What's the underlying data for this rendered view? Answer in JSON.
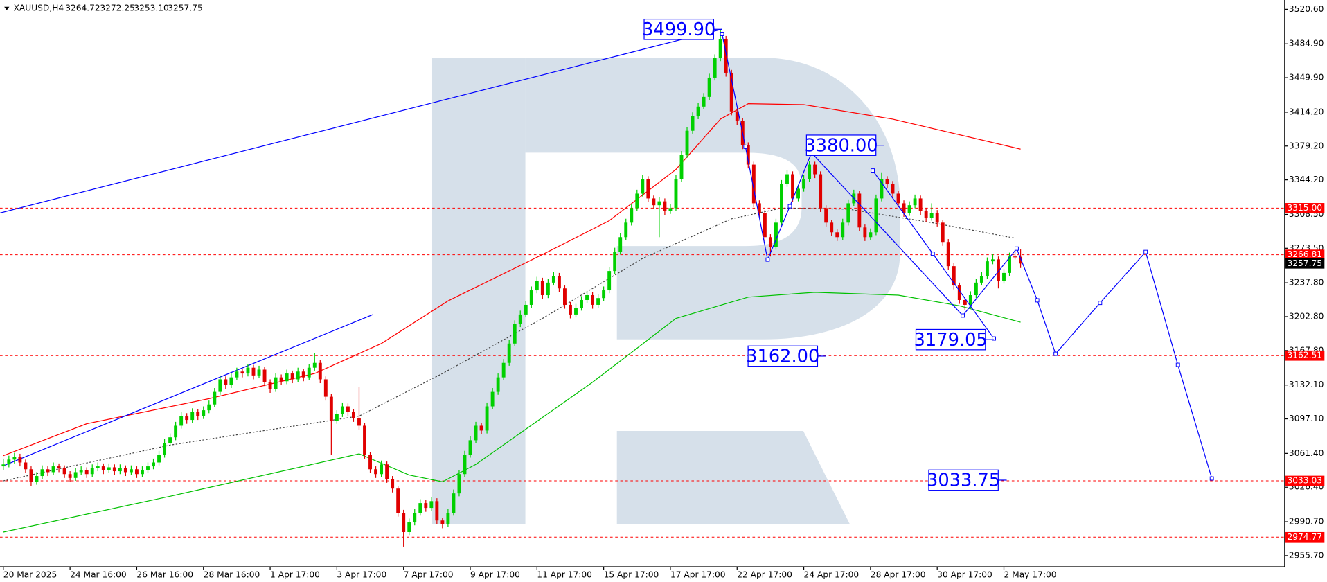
{
  "chart_data": {
    "type": "candlestick",
    "symbol": "XAUUSD,H4",
    "header_ohlc": [
      "3264.72",
      "3272.25",
      "3253.10",
      "3257.75"
    ],
    "up_color": "#00d000",
    "down_color": "#e00000",
    "xlim": [
      -0.6,
      230.5
    ],
    "xticks": [
      {
        "value": 0,
        "label": "20 Mar 2025"
      },
      {
        "value": 12,
        "label": "24 Mar 16:00"
      },
      {
        "value": 24,
        "label": "26 Mar 16:00"
      },
      {
        "value": 36,
        "label": "28 Mar 16:00"
      },
      {
        "value": 48,
        "label": "1 Apr 17:00"
      },
      {
        "value": 60,
        "label": "3 Apr 17:00"
      },
      {
        "value": 72,
        "label": "7 Apr 17:00"
      },
      {
        "value": 84,
        "label": "9 Apr 17:00"
      },
      {
        "value": 96,
        "label": "11 Apr 17:00"
      },
      {
        "value": 108,
        "label": "15 Apr 17:00"
      },
      {
        "value": 120,
        "label": "17 Apr 17:00"
      },
      {
        "value": 132,
        "label": "22 Apr 17:00"
      },
      {
        "value": 144,
        "label": "24 Apr 17:00"
      },
      {
        "value": 156,
        "label": "28 Apr 17:00"
      },
      {
        "value": 168,
        "label": "30 Apr 17:00"
      },
      {
        "value": 180,
        "label": "2 May 17:00"
      }
    ],
    "ylim": [
      2944.2,
      3530.2
    ],
    "yticks": [
      {
        "value": 3520.6,
        "label": "3520.60"
      },
      {
        "value": 3484.9,
        "label": "3484.90"
      },
      {
        "value": 3449.9,
        "label": "3449.90"
      },
      {
        "value": 3414.2,
        "label": "3414.20"
      },
      {
        "value": 3379.2,
        "label": "3379.20"
      },
      {
        "value": 3344.2,
        "label": "3344.20"
      },
      {
        "value": 3308.5,
        "label": "3308.50"
      },
      {
        "value": 3273.5,
        "label": "3273.50"
      },
      {
        "value": 3237.8,
        "label": "3237.80"
      },
      {
        "value": 3202.8,
        "label": "3202.80"
      },
      {
        "value": 3167.8,
        "label": "3167.80"
      },
      {
        "value": 3132.1,
        "label": "3132.10"
      },
      {
        "value": 3097.1,
        "label": "3097.10"
      },
      {
        "value": 3061.4,
        "label": "3061.40"
      },
      {
        "value": 3026.4,
        "label": "3026.40"
      },
      {
        "value": 2990.7,
        "label": "2990.70"
      },
      {
        "value": 2955.7,
        "label": "2955.70"
      }
    ],
    "levels": [
      {
        "value": 3315.0,
        "label": "3315.00",
        "color": "#ff0000"
      },
      {
        "value": 3266.81,
        "label": "3266.81",
        "color": "#ff0000"
      },
      {
        "value": 3162.51,
        "label": "3162.51",
        "color": "#ff0000"
      },
      {
        "value": 3033.03,
        "label": "3033.03",
        "color": "#ff0000"
      },
      {
        "value": 2974.77,
        "label": "2974.77",
        "color": "#ff0000"
      }
    ],
    "last_price": {
      "value": 3257.75,
      "label": "3257.75",
      "color": "#000000"
    },
    "indicators": [
      {
        "color": "#ff0000",
        "dash": false,
        "x": [
          0,
          15,
          37,
          56,
          68,
          80,
          97,
          109,
          121,
          129,
          134,
          144,
          160,
          183
        ],
        "values": [
          3059,
          3092,
          3118,
          3144,
          3175,
          3219,
          3267,
          3302,
          3355,
          3407,
          3423,
          3422,
          3407,
          3376
        ]
      },
      {
        "color": "#00c000",
        "dash": false,
        "x": [
          0,
          30,
          64,
          73,
          79,
          85,
          106,
          121,
          134,
          146,
          161,
          172,
          183
        ],
        "values": [
          2980,
          3017,
          3061,
          3039,
          3032,
          3050,
          3135,
          3201,
          3223,
          3228,
          3225,
          3214,
          3197
        ]
      },
      {
        "color": "#444444",
        "dash": true,
        "x": [
          0,
          30,
          64,
          79,
          97,
          115,
          131,
          140,
          152,
          167,
          182
        ],
        "values": [
          3033,
          3070,
          3100,
          3144,
          3201,
          3263,
          3304,
          3315,
          3314,
          3300,
          3284
        ]
      }
    ],
    "trendlines": [
      {
        "color": "#0000ff",
        "x": [
          -0.6,
          129.3
        ],
        "values": [
          3310,
          3500
        ]
      },
      {
        "color": "#0000ff",
        "x": [
          0.2,
          66.5
        ],
        "values": [
          3049,
          3205
        ]
      }
    ],
    "forecast": [
      {
        "color": "#0000ff",
        "x": [
          129.3,
          133.5,
          137.5,
          141.5,
          145.4,
          172.6,
          182.3,
          186,
          189.3,
          197.3,
          205.5,
          211.3,
          217.4
        ],
        "values": [
          3495.1,
          3378.4,
          3261.8,
          3317.0,
          3372.3,
          3203.9,
          3273.2,
          3219.7,
          3164.4,
          3217.0,
          3269.7,
          3153.0,
          3035.5
        ]
      },
      {
        "color": "#0000ff",
        "x": [
          156.4,
          167.2,
          178.2
        ],
        "values": [
          3353.9,
          3267.9,
          3180.2
        ]
      }
    ],
    "annotations": [
      {
        "label": "3499.90",
        "value": 3499.9,
        "x": 129.3
      },
      {
        "label": "3380.00",
        "value": 3380.0,
        "x": 158.5
      },
      {
        "label": "3179.05",
        "value": 3179.05,
        "x": 178.2
      },
      {
        "label": "3162.00",
        "value": 3162.0,
        "x": 148.0
      },
      {
        "label": "3033.75",
        "value": 3033.75,
        "x": 180.5
      }
    ],
    "candles": [
      [
        3048,
        3056,
        3044,
        3050
      ],
      [
        3050,
        3059,
        3047,
        3055
      ],
      [
        3055,
        3062,
        3051,
        3058
      ],
      [
        3058,
        3061,
        3048,
        3052
      ],
      [
        3052,
        3055,
        3041,
        3045
      ],
      [
        3045,
        3048,
        3028,
        3032
      ],
      [
        3032,
        3042,
        3029,
        3038
      ],
      [
        3038,
        3049,
        3035,
        3045
      ],
      [
        3045,
        3048,
        3038,
        3042
      ],
      [
        3042,
        3052,
        3039,
        3048
      ],
      [
        3048,
        3051,
        3042,
        3046
      ],
      [
        3046,
        3049,
        3036,
        3040
      ],
      [
        3040,
        3043,
        3032,
        3036
      ],
      [
        3036,
        3046,
        3033,
        3042
      ],
      [
        3042,
        3048,
        3039,
        3044
      ],
      [
        3044,
        3047,
        3036,
        3040
      ],
      [
        3040,
        3050,
        3037,
        3046
      ],
      [
        3046,
        3052,
        3043,
        3048
      ],
      [
        3048,
        3051,
        3040,
        3044
      ],
      [
        3044,
        3051,
        3041,
        3047
      ],
      [
        3047,
        3050,
        3039,
        3043
      ],
      [
        3043,
        3050,
        3040,
        3046
      ],
      [
        3046,
        3049,
        3038,
        3042
      ],
      [
        3042,
        3049,
        3039,
        3045
      ],
      [
        3045,
        3048,
        3036,
        3040
      ],
      [
        3040,
        3048,
        3037,
        3044
      ],
      [
        3044,
        3052,
        3041,
        3048
      ],
      [
        3048,
        3056,
        3045,
        3052
      ],
      [
        3052,
        3064,
        3049,
        3060
      ],
      [
        3060,
        3076,
        3057,
        3072
      ],
      [
        3072,
        3082,
        3069,
        3078
      ],
      [
        3078,
        3094,
        3075,
        3090
      ],
      [
        3090,
        3104,
        3087,
        3100
      ],
      [
        3100,
        3103,
        3092,
        3096
      ],
      [
        3096,
        3108,
        3093,
        3104
      ],
      [
        3104,
        3107,
        3096,
        3100
      ],
      [
        3100,
        3110,
        3097,
        3106
      ],
      [
        3106,
        3116,
        3103,
        3112
      ],
      [
        3112,
        3129,
        3109,
        3125
      ],
      [
        3125,
        3142,
        3122,
        3138
      ],
      [
        3138,
        3141,
        3128,
        3132
      ],
      [
        3132,
        3144,
        3129,
        3140
      ],
      [
        3140,
        3150,
        3137,
        3146
      ],
      [
        3146,
        3149,
        3140,
        3144
      ],
      [
        3144,
        3154,
        3141,
        3150
      ],
      [
        3150,
        3153,
        3138,
        3142
      ],
      [
        3142,
        3152,
        3139,
        3148
      ],
      [
        3148,
        3151,
        3131,
        3135
      ],
      [
        3135,
        3138,
        3124,
        3128
      ],
      [
        3128,
        3144,
        3125,
        3140
      ],
      [
        3140,
        3143,
        3132,
        3136
      ],
      [
        3136,
        3148,
        3133,
        3144
      ],
      [
        3144,
        3147,
        3134,
        3138
      ],
      [
        3138,
        3150,
        3135,
        3146
      ],
      [
        3146,
        3149,
        3136,
        3140
      ],
      [
        3140,
        3154,
        3137,
        3150
      ],
      [
        3150,
        3165,
        3147,
        3155
      ],
      [
        3155,
        3158,
        3134,
        3138
      ],
      [
        3138,
        3141,
        3116,
        3120
      ],
      [
        3120,
        3123,
        3060,
        3095
      ],
      [
        3095,
        3106,
        3092,
        3102
      ],
      [
        3102,
        3114,
        3099,
        3110
      ],
      [
        3110,
        3113,
        3100,
        3104
      ],
      [
        3104,
        3107,
        3094,
        3098
      ],
      [
        3098,
        3130,
        3086,
        3090
      ],
      [
        3090,
        3093,
        3056,
        3060
      ],
      [
        3060,
        3063,
        3041,
        3045
      ],
      [
        3045,
        3048,
        3036,
        3040
      ],
      [
        3040,
        3054,
        3037,
        3050
      ],
      [
        3050,
        3053,
        3031,
        3035
      ],
      [
        3035,
        3038,
        3021,
        3025
      ],
      [
        3025,
        3028,
        2996,
        3000
      ],
      [
        3000,
        3003,
        2965,
        2980
      ],
      [
        2980,
        2994,
        2977,
        2990
      ],
      [
        2990,
        3004,
        2987,
        3000
      ],
      [
        3000,
        3014,
        2997,
        3010
      ],
      [
        3010,
        3013,
        3001,
        3005
      ],
      [
        3005,
        3016,
        3002,
        3012
      ],
      [
        3012,
        3015,
        2988,
        2992
      ],
      [
        2992,
        2995,
        2984,
        2988
      ],
      [
        2988,
        3004,
        2985,
        3000
      ],
      [
        3000,
        3024,
        2997,
        3020
      ],
      [
        3020,
        3044,
        3017,
        3040
      ],
      [
        3040,
        3064,
        3037,
        3060
      ],
      [
        3060,
        3079,
        3057,
        3075
      ],
      [
        3075,
        3094,
        3072,
        3090
      ],
      [
        3090,
        3093,
        3081,
        3085
      ],
      [
        3085,
        3114,
        3082,
        3110
      ],
      [
        3110,
        3129,
        3107,
        3125
      ],
      [
        3125,
        3144,
        3122,
        3140
      ],
      [
        3140,
        3159,
        3137,
        3155
      ],
      [
        3155,
        3179,
        3152,
        3175
      ],
      [
        3175,
        3199,
        3172,
        3195
      ],
      [
        3195,
        3209,
        3192,
        3205
      ],
      [
        3205,
        3219,
        3202,
        3215
      ],
      [
        3215,
        3234,
        3212,
        3230
      ],
      [
        3230,
        3244,
        3227,
        3240
      ],
      [
        3240,
        3243,
        3221,
        3225
      ],
      [
        3225,
        3242,
        3222,
        3238
      ],
      [
        3238,
        3249,
        3235,
        3245
      ],
      [
        3245,
        3248,
        3228,
        3232
      ],
      [
        3232,
        3235,
        3211,
        3215
      ],
      [
        3215,
        3218,
        3201,
        3205
      ],
      [
        3205,
        3216,
        3202,
        3212
      ],
      [
        3212,
        3224,
        3209,
        3220
      ],
      [
        3220,
        3229,
        3217,
        3225
      ],
      [
        3225,
        3228,
        3211,
        3215
      ],
      [
        3215,
        3226,
        3212,
        3222
      ],
      [
        3222,
        3234,
        3219,
        3230
      ],
      [
        3230,
        3254,
        3227,
        3250
      ],
      [
        3250,
        3274,
        3247,
        3270
      ],
      [
        3270,
        3289,
        3267,
        3285
      ],
      [
        3285,
        3304,
        3282,
        3300
      ],
      [
        3300,
        3319,
        3297,
        3315
      ],
      [
        3315,
        3334,
        3312,
        3330
      ],
      [
        3330,
        3349,
        3327,
        3345
      ],
      [
        3345,
        3348,
        3321,
        3325
      ],
      [
        3325,
        3328,
        3314,
        3318
      ],
      [
        3318,
        3326,
        3285,
        3322
      ],
      [
        3322,
        3325,
        3308,
        3312
      ],
      [
        3312,
        3319,
        3309,
        3315
      ],
      [
        3315,
        3349,
        3312,
        3345
      ],
      [
        3345,
        3374,
        3342,
        3370
      ],
      [
        3370,
        3399,
        3367,
        3395
      ],
      [
        3395,
        3414,
        3392,
        3410
      ],
      [
        3410,
        3424,
        3407,
        3420
      ],
      [
        3420,
        3434,
        3417,
        3430
      ],
      [
        3430,
        3454,
        3427,
        3450
      ],
      [
        3450,
        3474,
        3447,
        3470
      ],
      [
        3470,
        3499.9,
        3467,
        3490
      ],
      [
        3490,
        3493,
        3451,
        3455
      ],
      [
        3455,
        3458,
        3411,
        3415
      ],
      [
        3415,
        3418,
        3401,
        3405
      ],
      [
        3405,
        3408,
        3376,
        3380
      ],
      [
        3380,
        3383,
        3356,
        3360
      ],
      [
        3360,
        3363,
        3316,
        3320
      ],
      [
        3320,
        3323,
        3306,
        3310
      ],
      [
        3310,
        3313,
        3281,
        3285
      ],
      [
        3285,
        3288,
        3265,
        3275
      ],
      [
        3275,
        3304,
        3272,
        3300
      ],
      [
        3300,
        3344,
        3297,
        3340
      ],
      [
        3340,
        3354,
        3337,
        3350
      ],
      [
        3350,
        3353,
        3321,
        3325
      ],
      [
        3325,
        3339,
        3322,
        3335
      ],
      [
        3335,
        3349,
        3332,
        3345
      ],
      [
        3345,
        3364,
        3342,
        3360
      ],
      [
        3360,
        3363,
        3346,
        3350
      ],
      [
        3350,
        3353,
        3311,
        3315
      ],
      [
        3315,
        3318,
        3296,
        3300
      ],
      [
        3300,
        3303,
        3286,
        3290
      ],
      [
        3290,
        3293,
        3281,
        3285
      ],
      [
        3285,
        3304,
        3282,
        3300
      ],
      [
        3300,
        3324,
        3297,
        3320
      ],
      [
        3320,
        3334,
        3317,
        3330
      ],
      [
        3330,
        3333,
        3291,
        3295
      ],
      [
        3295,
        3298,
        3281,
        3285
      ],
      [
        3285,
        3294,
        3282,
        3290
      ],
      [
        3290,
        3329,
        3287,
        3325
      ],
      [
        3325,
        3352,
        3322,
        3345
      ],
      [
        3345,
        3348,
        3336,
        3340
      ],
      [
        3340,
        3343,
        3326,
        3330
      ],
      [
        3330,
        3333,
        3316,
        3320
      ],
      [
        3320,
        3323,
        3306,
        3310
      ],
      [
        3310,
        3322,
        3307,
        3318
      ],
      [
        3318,
        3329,
        3315,
        3325
      ],
      [
        3325,
        3328,
        3308,
        3312
      ],
      [
        3312,
        3315,
        3301,
        3305
      ],
      [
        3305,
        3320,
        3302,
        3310
      ],
      [
        3310,
        3313,
        3296,
        3300
      ],
      [
        3300,
        3303,
        3276,
        3280
      ],
      [
        3280,
        3283,
        3251,
        3255
      ],
      [
        3255,
        3258,
        3231,
        3235
      ],
      [
        3235,
        3238,
        3216,
        3220
      ],
      [
        3220,
        3223,
        3210,
        3215
      ],
      [
        3215,
        3229,
        3212,
        3225
      ],
      [
        3225,
        3242,
        3222,
        3238
      ],
      [
        3238,
        3249,
        3235,
        3245
      ],
      [
        3245,
        3264,
        3242,
        3260
      ],
      [
        3260,
        3268,
        3257,
        3262
      ],
      [
        3262,
        3265,
        3232,
        3240
      ],
      [
        3240,
        3252,
        3237,
        3248
      ],
      [
        3248,
        3269,
        3245,
        3265
      ],
      [
        3265,
        3272,
        3262,
        3264.72
      ],
      [
        3264.72,
        3272.25,
        3253.1,
        3257.75
      ]
    ]
  }
}
